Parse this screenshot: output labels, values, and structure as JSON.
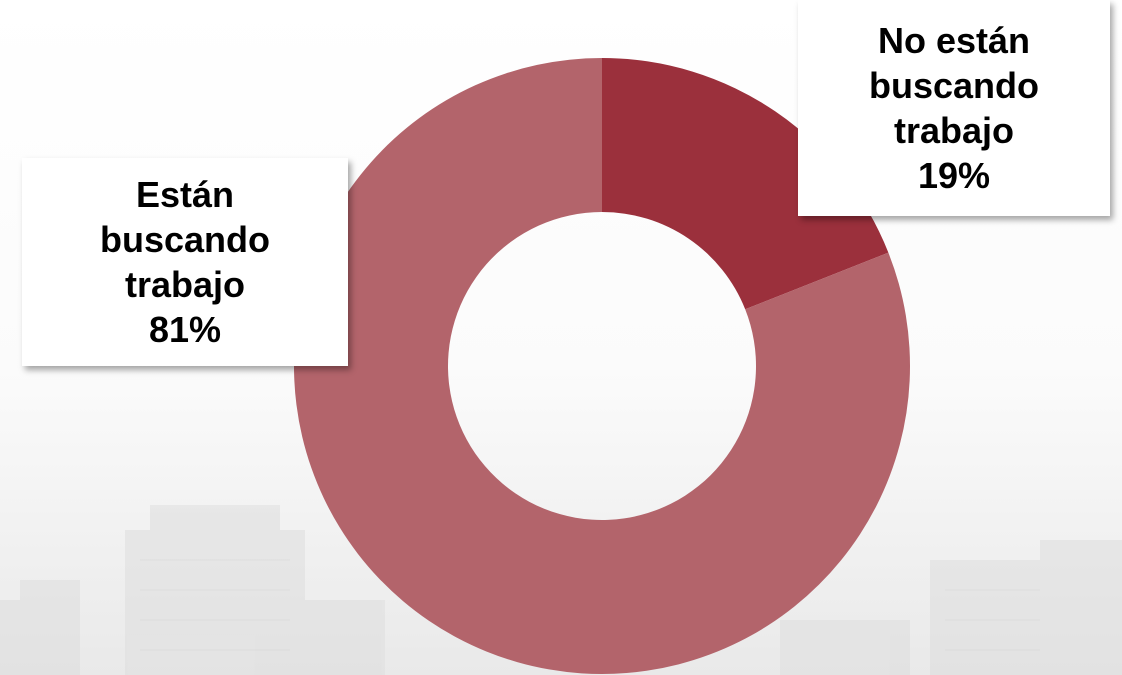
{
  "chart_data": {
    "type": "pie",
    "variant": "donut",
    "title": "",
    "slices": [
      {
        "label_lines": [
          "Están",
          "buscando",
          "trabajo"
        ],
        "value": 81,
        "value_label": "81%",
        "color": "#b3646b"
      },
      {
        "label_lines": [
          "No están",
          "buscando",
          "trabajo"
        ],
        "value": 19,
        "value_label": "19%",
        "color": "#9b303c"
      }
    ],
    "legend": "none"
  }
}
